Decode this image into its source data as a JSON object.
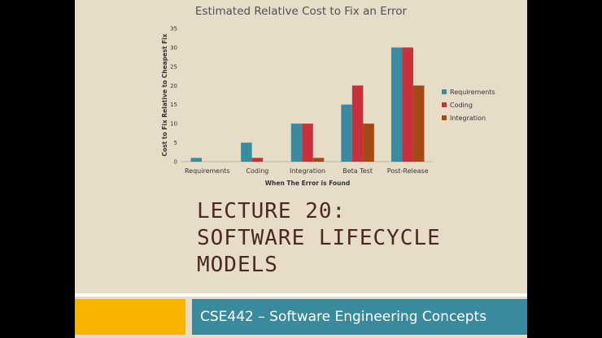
{
  "chart_data": {
    "type": "bar",
    "title": "Estimated Relative Cost to Fix an Error",
    "xlabel": "When The Error is Found",
    "ylabel": "Cost to Fix Relative to Cheapest Fix",
    "ylim": [
      0,
      35
    ],
    "yticks": [
      0,
      5,
      10,
      15,
      20,
      25,
      30,
      35
    ],
    "categories": [
      "Requirements",
      "Coding",
      "Integration",
      "Beta Test",
      "Post-Release"
    ],
    "series": [
      {
        "name": "Requirements",
        "color": "#3a8aa0",
        "values": [
          1,
          5,
          10,
          15,
          30
        ]
      },
      {
        "name": "Coding",
        "color": "#c8303a",
        "values": [
          0,
          1,
          10,
          20,
          30
        ]
      },
      {
        "name": "Integration",
        "color": "#a24a12",
        "values": [
          0,
          0,
          1,
          10,
          20
        ]
      }
    ],
    "legend": "right",
    "grid": false
  },
  "lecture": {
    "line1": "LECTURE 20:",
    "line2": "SOFTWARE LIFECYCLE",
    "line3": "MODELS"
  },
  "footer": {
    "course": "CSE442 – Software Engineering Concepts"
  },
  "colors": {
    "slide_bg": "#e6dcc8",
    "footer_bar": "#3a8a9e",
    "footer_accent": "#f7b500",
    "title_text": "#4a2a20"
  }
}
